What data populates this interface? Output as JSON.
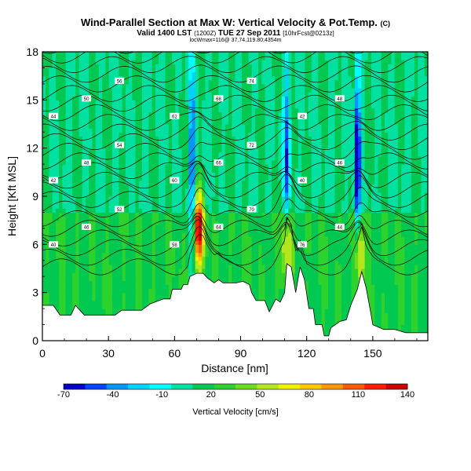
{
  "header": {
    "title": "Wind-Parallel Section at Max W: Vertical Velocity & Pot.Temp.",
    "title_mark": "(C)",
    "valid_main": "Valid 1400 LST",
    "valid_paren": "(1200Z)",
    "valid_date": "TUE 27 Sep 2011",
    "valid_fcst": "[10hrFcst@0213z]",
    "subline": "locWmax=116@ 37.74,119.80;4354m"
  },
  "chart_data": {
    "type": "heatmap",
    "xlabel": "Distance [nm]",
    "ylabel": "Height [Kft MSL]",
    "xlim": [
      0,
      175
    ],
    "ylim": [
      0,
      18
    ],
    "xticks": [
      "0",
      "30",
      "60",
      "90",
      "120",
      "150"
    ],
    "yticks": [
      "0",
      "3",
      "6",
      "9",
      "12",
      "15",
      "18"
    ],
    "colorbar": {
      "label": "Vertical Velocity [cm/s]",
      "ticks": [
        "-70",
        "-40",
        "-10",
        "20",
        "50",
        "80",
        "110",
        "140"
      ],
      "colors": [
        "#0000c8",
        "#0046ff",
        "#0096ff",
        "#00d2ff",
        "#00ffff",
        "#00e0a0",
        "#00c850",
        "#2dd22d",
        "#6edc1e",
        "#b4e61e",
        "#f0f000",
        "#ffc800",
        "#ff9600",
        "#ff5a00",
        "#ff1e00",
        "#c80000"
      ]
    },
    "terrain_kft": [
      [
        0,
        2.2
      ],
      [
        5,
        2.2
      ],
      [
        8,
        1.6
      ],
      [
        13,
        1.6
      ],
      [
        15,
        2.2
      ],
      [
        19,
        1.6
      ],
      [
        33,
        1.6
      ],
      [
        36,
        1.9
      ],
      [
        45,
        1.9
      ],
      [
        49,
        2.3
      ],
      [
        55,
        2.6
      ],
      [
        58,
        2.6
      ],
      [
        59,
        3.2
      ],
      [
        63,
        3.2
      ],
      [
        64,
        3.5
      ],
      [
        66,
        3.5
      ],
      [
        67,
        4.0
      ],
      [
        70,
        4.2
      ],
      [
        73,
        4.2
      ],
      [
        75,
        3.9
      ],
      [
        78,
        3.6
      ],
      [
        80,
        3.8
      ],
      [
        82,
        3.6
      ],
      [
        88,
        3.6
      ],
      [
        91,
        3.7
      ],
      [
        94,
        3.5
      ],
      [
        95,
        3.0
      ],
      [
        97,
        2.5
      ],
      [
        101,
        2.5
      ],
      [
        103,
        1.8
      ],
      [
        106,
        2.6
      ],
      [
        108,
        2.4
      ],
      [
        110,
        3.0
      ],
      [
        111,
        4.8
      ],
      [
        113,
        4.6
      ],
      [
        115,
        3.0
      ],
      [
        117,
        4.6
      ],
      [
        119,
        3.8
      ],
      [
        121,
        2.0
      ],
      [
        123,
        2.0
      ],
      [
        124,
        1.0
      ],
      [
        127,
        1.0
      ],
      [
        128,
        0.3
      ],
      [
        130,
        0.3
      ],
      [
        131,
        0.8
      ],
      [
        133,
        1.0
      ],
      [
        135,
        1.2
      ],
      [
        138,
        1.3
      ],
      [
        140,
        2.2
      ],
      [
        143,
        3.2
      ],
      [
        145,
        4.3
      ],
      [
        147,
        3.3
      ],
      [
        149,
        1.8
      ],
      [
        150,
        1.0
      ],
      [
        155,
        0.7
      ],
      [
        160,
        0.7
      ],
      [
        165,
        0.5
      ],
      [
        175,
        0.5
      ]
    ],
    "updrafts": [
      {
        "x": 71,
        "y": 7.0,
        "peak_cm_s": 140
      },
      {
        "x": 111,
        "y": 6.0,
        "peak_cm_s": 80
      },
      {
        "x": 144,
        "y": 5.5,
        "peak_cm_s": 80
      }
    ],
    "downdrafts": [
      {
        "x": 68,
        "y": 11.0,
        "min_cm_s": -40
      },
      {
        "x": 111,
        "y": 11.5,
        "min_cm_s": -40
      },
      {
        "x": 143,
        "y": 11.0,
        "min_cm_s": -70
      }
    ],
    "isentrope_labels": [
      "40",
      "42",
      "44",
      "46",
      "48",
      "50",
      "52",
      "54",
      "56",
      "58",
      "60",
      "62",
      "64",
      "66",
      "68",
      "70",
      "72",
      "74",
      "76"
    ]
  }
}
